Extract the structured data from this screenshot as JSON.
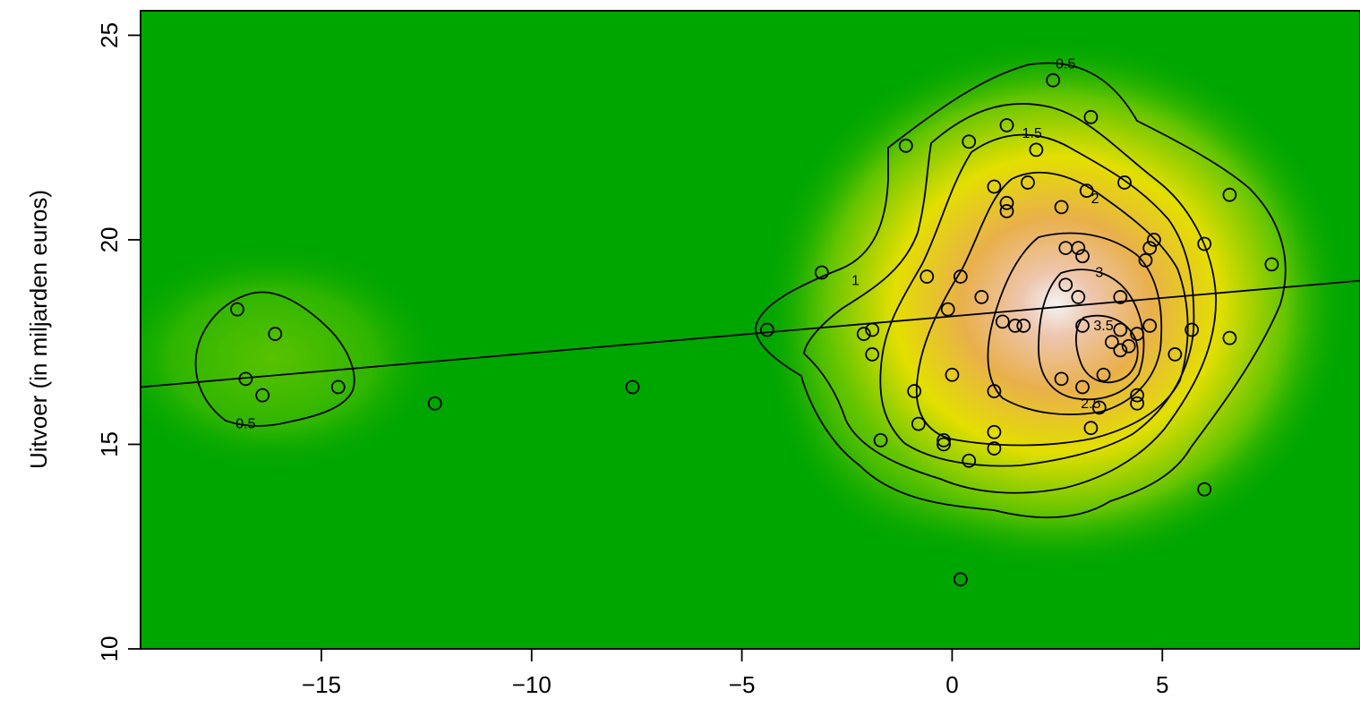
{
  "chart_data": {
    "type": "scatter",
    "title": "",
    "xlabel": "",
    "ylabel": "Uitvoer (in miljarden euros)",
    "xlim": [
      -19.3,
      9.7
    ],
    "ylim": [
      10,
      25.6
    ],
    "x_ticks": [
      -15,
      -10,
      -5,
      0,
      5
    ],
    "x_tick_labels": [
      "−15",
      "−10",
      "−5",
      "0",
      "5"
    ],
    "y_ticks": [
      10,
      15,
      20,
      25
    ],
    "y_tick_labels": [
      "10",
      "15",
      "20",
      "25"
    ],
    "density_palette": [
      "#00a600",
      "#63c600",
      "#e6e600",
      "#eab64a",
      "#eebb9f",
      "#f2f2f2"
    ],
    "contour_levels": [
      {
        "label": "0.5",
        "x": 2.7,
        "y": 24.3
      },
      {
        "label": "0.5",
        "x": -16.8,
        "y": 15.5
      },
      {
        "label": "1",
        "x": -2.3,
        "y": 19.0
      },
      {
        "label": "1.5",
        "x": 1.9,
        "y": 22.6
      },
      {
        "label": "2",
        "x": 3.4,
        "y": 21.0
      },
      {
        "label": "2.5",
        "x": 3.3,
        "y": 16.0
      },
      {
        "label": "3",
        "x": 3.5,
        "y": 19.2
      },
      {
        "label": "3.5",
        "x": 3.6,
        "y": 17.9
      }
    ],
    "regression_line": {
      "x": [
        -19.3,
        9.7
      ],
      "y": [
        16.4,
        19.0
      ]
    },
    "points": [
      {
        "x": -17.0,
        "y": 18.3
      },
      {
        "x": -16.1,
        "y": 17.7
      },
      {
        "x": -16.8,
        "y": 16.6
      },
      {
        "x": -16.4,
        "y": 16.2
      },
      {
        "x": -14.6,
        "y": 16.4
      },
      {
        "x": -12.3,
        "y": 16.0
      },
      {
        "x": -7.6,
        "y": 16.4
      },
      {
        "x": -4.4,
        "y": 17.8
      },
      {
        "x": -3.1,
        "y": 19.2
      },
      {
        "x": -2.1,
        "y": 17.7
      },
      {
        "x": -1.9,
        "y": 17.8
      },
      {
        "x": -1.9,
        "y": 17.2
      },
      {
        "x": -1.7,
        "y": 15.1
      },
      {
        "x": -1.1,
        "y": 22.3
      },
      {
        "x": -0.9,
        "y": 16.3
      },
      {
        "x": -0.8,
        "y": 15.5
      },
      {
        "x": -0.6,
        "y": 19.1
      },
      {
        "x": -0.2,
        "y": 15.1
      },
      {
        "x": -0.2,
        "y": 15.0
      },
      {
        "x": -0.1,
        "y": 18.3
      },
      {
        "x": 0.0,
        "y": 16.7
      },
      {
        "x": 0.2,
        "y": 19.1
      },
      {
        "x": 0.2,
        "y": 11.7
      },
      {
        "x": 0.4,
        "y": 22.4
      },
      {
        "x": 0.4,
        "y": 14.6
      },
      {
        "x": 0.7,
        "y": 18.6
      },
      {
        "x": 1.0,
        "y": 21.3
      },
      {
        "x": 1.0,
        "y": 16.3
      },
      {
        "x": 1.0,
        "y": 15.3
      },
      {
        "x": 1.0,
        "y": 14.9
      },
      {
        "x": 1.2,
        "y": 18.0
      },
      {
        "x": 1.3,
        "y": 22.8
      },
      {
        "x": 1.3,
        "y": 20.9
      },
      {
        "x": 1.3,
        "y": 20.7
      },
      {
        "x": 1.5,
        "y": 17.9
      },
      {
        "x": 1.7,
        "y": 17.9
      },
      {
        "x": 1.8,
        "y": 21.4
      },
      {
        "x": 2.0,
        "y": 22.2
      },
      {
        "x": 2.4,
        "y": 23.9
      },
      {
        "x": 2.6,
        "y": 20.8
      },
      {
        "x": 2.6,
        "y": 16.6
      },
      {
        "x": 2.7,
        "y": 19.8
      },
      {
        "x": 2.7,
        "y": 18.9
      },
      {
        "x": 3.0,
        "y": 19.8
      },
      {
        "x": 3.0,
        "y": 18.6
      },
      {
        "x": 3.1,
        "y": 19.6
      },
      {
        "x": 3.1,
        "y": 17.9
      },
      {
        "x": 3.1,
        "y": 16.4
      },
      {
        "x": 3.2,
        "y": 21.2
      },
      {
        "x": 3.3,
        "y": 23.0
      },
      {
        "x": 3.3,
        "y": 15.4
      },
      {
        "x": 3.5,
        "y": 15.9
      },
      {
        "x": 3.6,
        "y": 16.7
      },
      {
        "x": 3.8,
        "y": 17.5
      },
      {
        "x": 4.0,
        "y": 18.6
      },
      {
        "x": 4.0,
        "y": 17.8
      },
      {
        "x": 4.0,
        "y": 17.3
      },
      {
        "x": 4.1,
        "y": 21.4
      },
      {
        "x": 4.2,
        "y": 17.4
      },
      {
        "x": 4.4,
        "y": 17.7
      },
      {
        "x": 4.4,
        "y": 16.2
      },
      {
        "x": 4.4,
        "y": 16.0
      },
      {
        "x": 4.6,
        "y": 19.5
      },
      {
        "x": 4.7,
        "y": 19.8
      },
      {
        "x": 4.7,
        "y": 17.9
      },
      {
        "x": 4.8,
        "y": 20.0
      },
      {
        "x": 5.3,
        "y": 17.2
      },
      {
        "x": 5.7,
        "y": 17.8
      },
      {
        "x": 6.0,
        "y": 19.9
      },
      {
        "x": 6.0,
        "y": 13.9
      },
      {
        "x": 6.6,
        "y": 21.1
      },
      {
        "x": 6.6,
        "y": 17.6
      },
      {
        "x": 7.6,
        "y": 19.4
      }
    ]
  }
}
